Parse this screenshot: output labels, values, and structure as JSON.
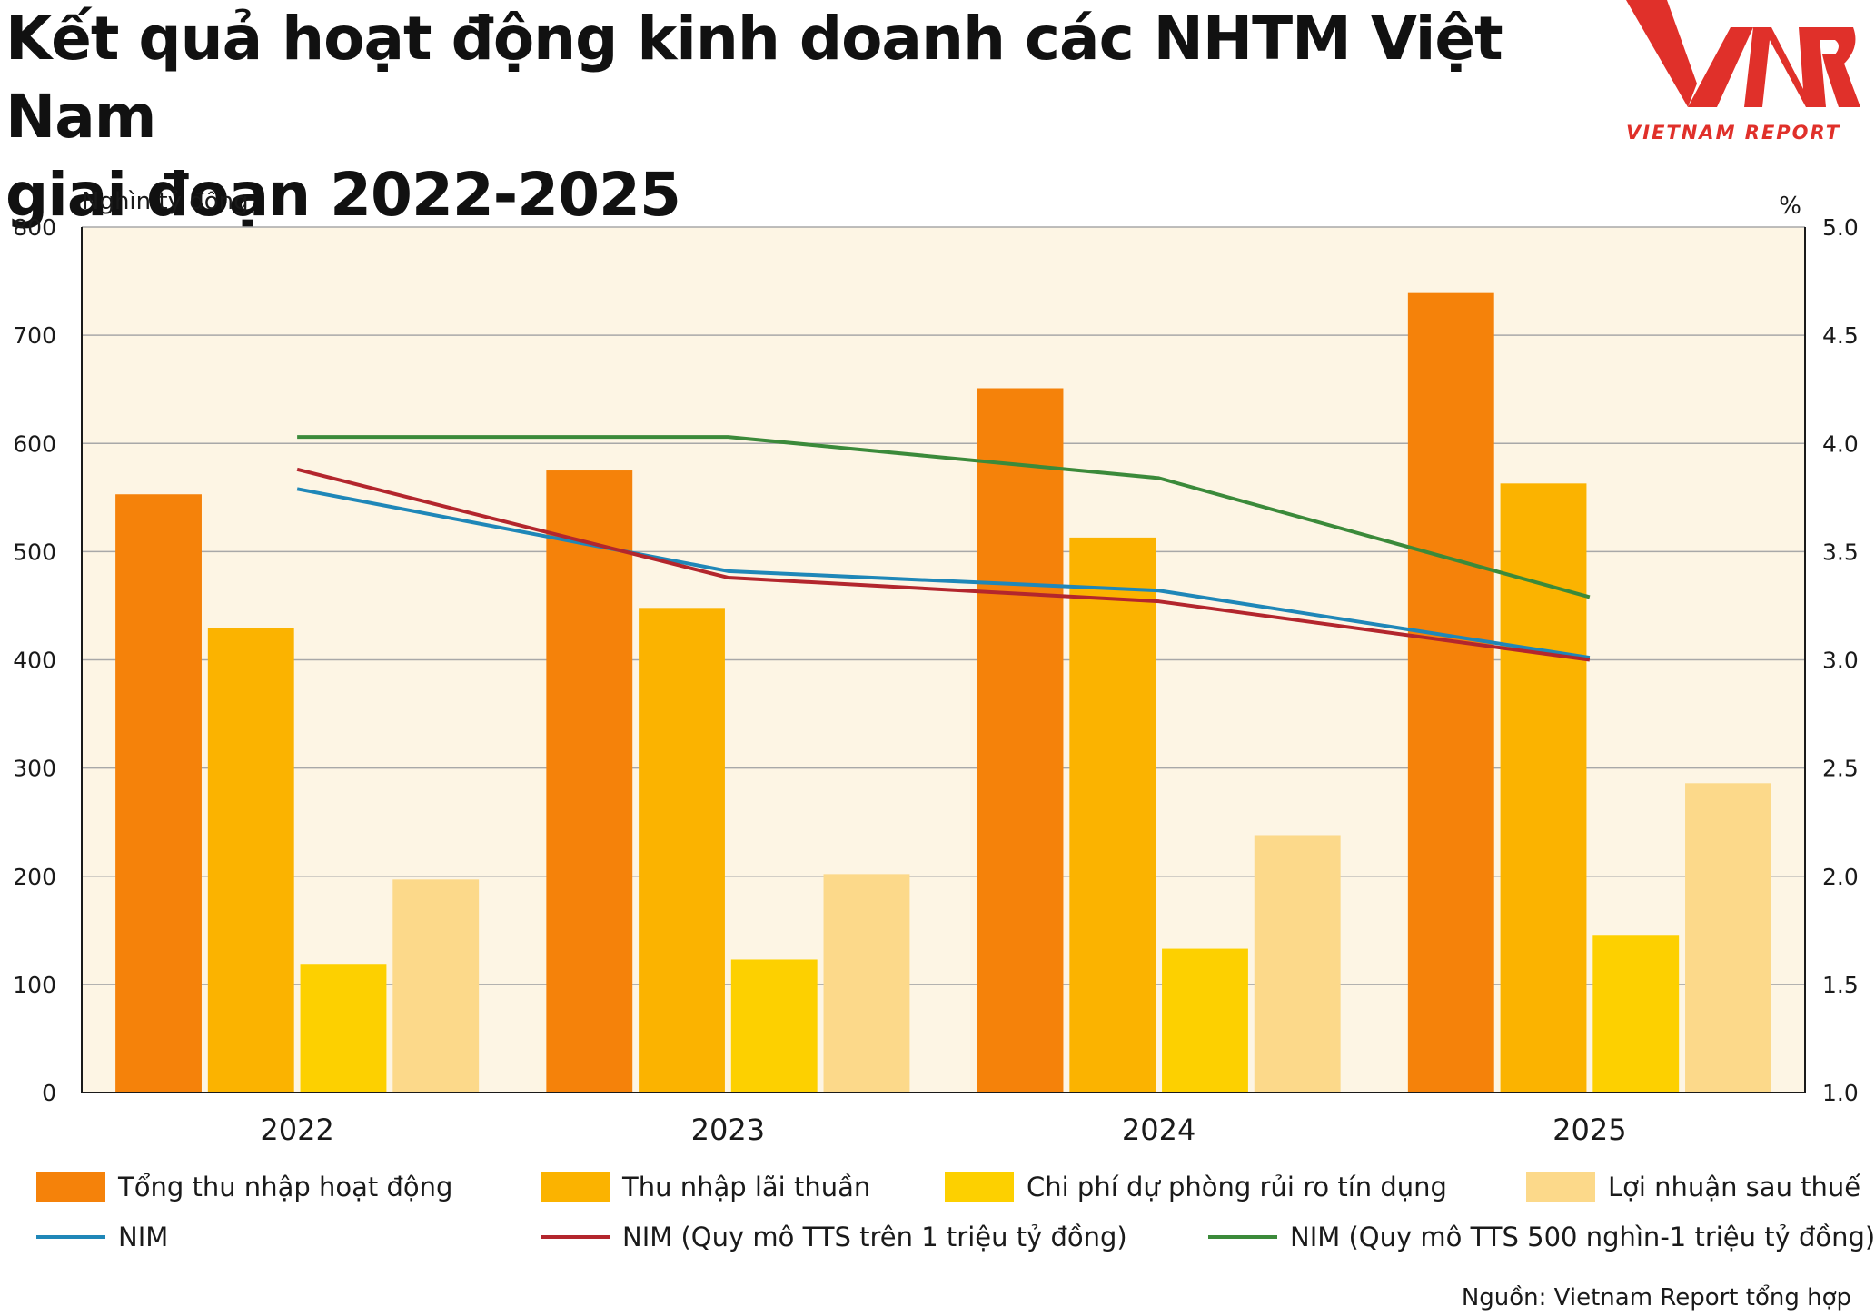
{
  "title_line1": "Kết quả hoạt động kinh doanh các NHTM Việt Nam",
  "title_line2": "giai đoạn 2022-2025",
  "logo": {
    "mark": "VNR",
    "text": "VIETNAM REPORT",
    "color": "#e0302a"
  },
  "source": "Nguồn: Vietnam Report tổng hợp",
  "chart_data": {
    "type": "bar",
    "categories": [
      "2022",
      "2023",
      "2024",
      "2025"
    ],
    "ylabel": "Nghìn tỷ đồng",
    "ylim": [
      0,
      800
    ],
    "y_ticks": [
      "0",
      "100",
      "200",
      "300",
      "400",
      "500",
      "600",
      "700",
      "800"
    ],
    "y2label": "%",
    "y2lim": [
      1.0,
      5.0
    ],
    "y2_ticks": [
      "1.0",
      "1.5",
      "2.0",
      "2.5",
      "3.0",
      "3.5",
      "4.0",
      "4.5",
      "5.0"
    ],
    "grid": true,
    "plot_background": "#fdf5e4",
    "legend_position": "bottom",
    "series": [
      {
        "name": "Tổng thu nhập hoạt động",
        "kind": "bar",
        "color": "#f5820a",
        "values": [
          553,
          575,
          651,
          739
        ]
      },
      {
        "name": "Thu nhập lãi thuần",
        "kind": "bar",
        "color": "#fbb300",
        "values": [
          429,
          448,
          513,
          563
        ]
      },
      {
        "name": "Chi phí dự phòng rủi ro tín dụng",
        "kind": "bar",
        "color": "#fdd000",
        "values": [
          119,
          123,
          133,
          145
        ]
      },
      {
        "name": "Lợi nhuận sau thuế",
        "kind": "bar",
        "color": "#fcd98a",
        "values": [
          197,
          202,
          238,
          286
        ]
      },
      {
        "name": "NIM",
        "kind": "line",
        "axis": "right",
        "color": "#1f87b8",
        "values": [
          3.79,
          3.41,
          3.32,
          3.01
        ]
      },
      {
        "name": "NIM (Quy mô TTS trên 1 triệu tỷ đồng)",
        "kind": "line",
        "axis": "right",
        "color": "#b3262d",
        "values": [
          3.88,
          3.38,
          3.27,
          3.0
        ]
      },
      {
        "name": "NIM (Quy mô TTS 500 nghìn-1 triệu tỷ đồng)",
        "kind": "line",
        "axis": "right",
        "color": "#3b8a3a",
        "values": [
          4.03,
          4.03,
          3.84,
          3.29
        ]
      }
    ]
  }
}
